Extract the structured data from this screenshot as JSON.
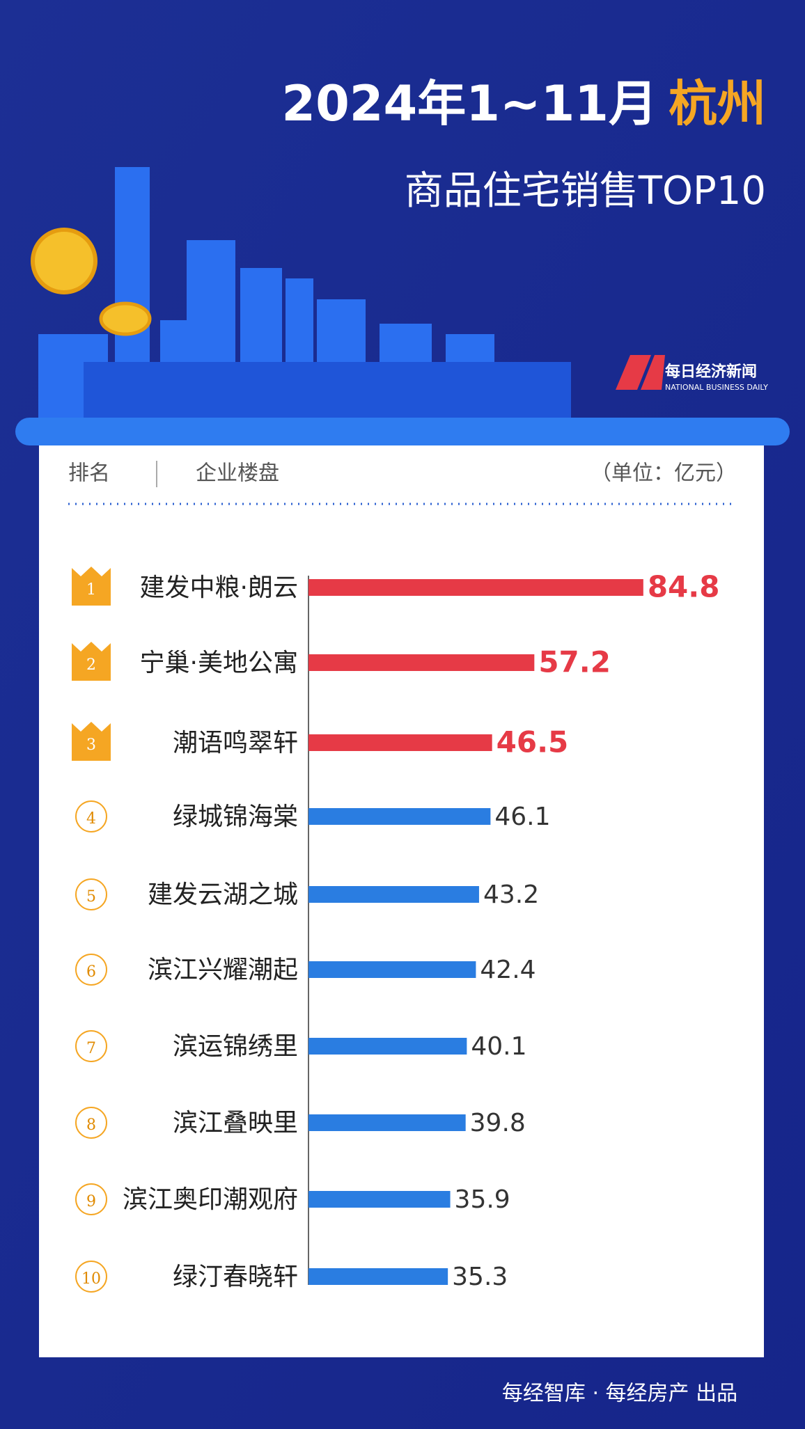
{
  "header": {
    "title": "2024年1~11月",
    "city": "杭州",
    "subtitle": "商品住宅销售TOP10",
    "logo_name": "每日经济新闻",
    "logo_en": "NATIONAL BUSINESS DAILY"
  },
  "table_header": {
    "rank": "排名",
    "project": "企业楼盘",
    "unit": "（单位：亿元）"
  },
  "chart_data": {
    "type": "bar",
    "orientation": "horizontal",
    "ranks": [
      1,
      2,
      3,
      4,
      5,
      6,
      7,
      8,
      9,
      10
    ],
    "categories": [
      "建发中粮·朗云",
      "宁巢·美地公寓",
      "潮语鸣翠轩",
      "绿城锦海棠",
      "建发云湖之城",
      "滨江兴耀潮起",
      "滨运锦绣里",
      "滨江叠映里",
      "滨江奥印潮观府",
      "绿汀春晓轩"
    ],
    "values": [
      84.8,
      57.2,
      46.5,
      46.1,
      43.2,
      42.4,
      40.1,
      39.8,
      35.9,
      35.3
    ],
    "bar_colors": [
      "#e63a46",
      "#e63a46",
      "#e63a46",
      "#2a7de1",
      "#2a7de1",
      "#2a7de1",
      "#2a7de1",
      "#2a7de1",
      "#2a7de1",
      "#2a7de1"
    ]
  },
  "footer": {
    "credit": "每经智库 · 每经房产 出品"
  }
}
